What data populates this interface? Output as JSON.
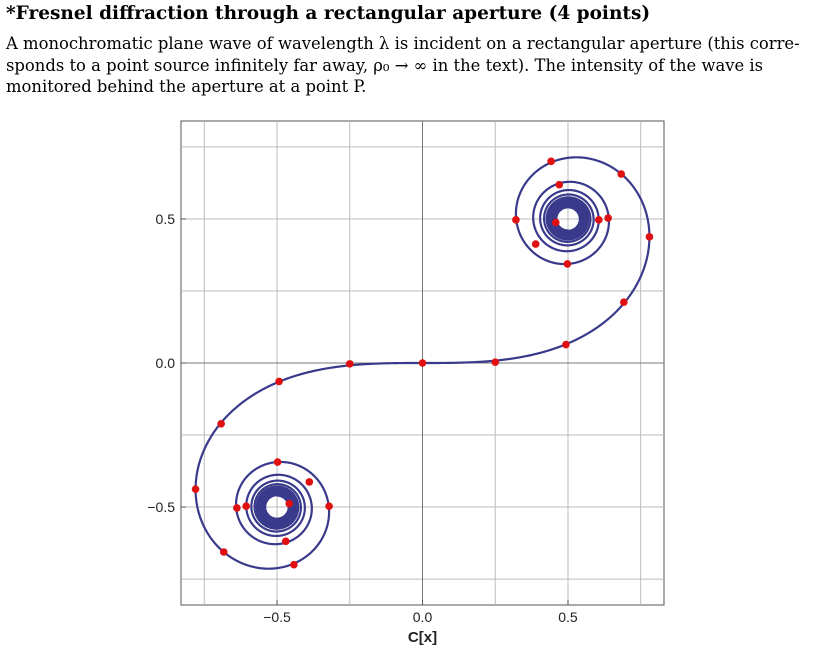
{
  "problem": {
    "title": "*Fresnel diffraction through a rectangular aperture (4 points)",
    "lines": [
      "A monochromatic plane wave of wavelength λ is incident on a rectangular aperture (this corre-",
      "sponds to a point source infinitely far away, ρ₀ → ∞ in the text).  The intensity of the wave is",
      "monitored behind the aperture at a point P."
    ]
  },
  "chart_data": {
    "type": "line",
    "title": "",
    "xlabel": "C[x]",
    "ylabel": "",
    "xlim": [
      -0.83,
      0.83
    ],
    "ylim": [
      -0.84,
      0.84
    ],
    "x_ticks": [
      -0.5,
      0.0,
      0.5
    ],
    "x_tick_labels": [
      "−0.5",
      "0.0",
      "0.5"
    ],
    "y_ticks": [
      0.5,
      0.0,
      -0.5
    ],
    "y_tick_labels": [
      "0.5",
      "0.0",
      "−0.5"
    ],
    "grid": true,
    "grid_x": [
      -0.75,
      -0.5,
      -0.25,
      0.0,
      0.25,
      0.5,
      0.75
    ],
    "grid_y": [
      0.75,
      0.5,
      0.25,
      0.0,
      -0.25,
      -0.5,
      -0.75
    ],
    "curve_color": "#3a3a8c",
    "marker_color": "#e01010",
    "series": [
      {
        "type": "line",
        "parametric": "Euler spiral (C(t), S(t)), t from -8 to 8",
        "t_range": [
          -8,
          8
        ]
      },
      {
        "type": "scatter",
        "x": [
          0.0,
          0.25,
          0.493,
          0.692,
          0.78,
          0.683,
          0.442,
          0.321,
          0.47,
          0.638,
          0.606,
          0.498,
          0.389,
          0.458,
          -0.25,
          -0.493,
          -0.692,
          -0.78,
          -0.683,
          -0.442,
          -0.321,
          -0.47,
          -0.638,
          -0.606,
          -0.498,
          -0.389,
          -0.458
        ],
        "y": [
          0.0,
          0.003,
          0.064,
          0.211,
          0.438,
          0.656,
          0.7,
          0.497,
          0.619,
          0.503,
          0.497,
          0.344,
          0.413,
          0.488,
          -0.003,
          -0.064,
          -0.211,
          -0.438,
          -0.656,
          -0.7,
          -0.497,
          -0.619,
          -0.503,
          -0.497,
          -0.344,
          -0.413,
          -0.488
        ]
      }
    ]
  }
}
